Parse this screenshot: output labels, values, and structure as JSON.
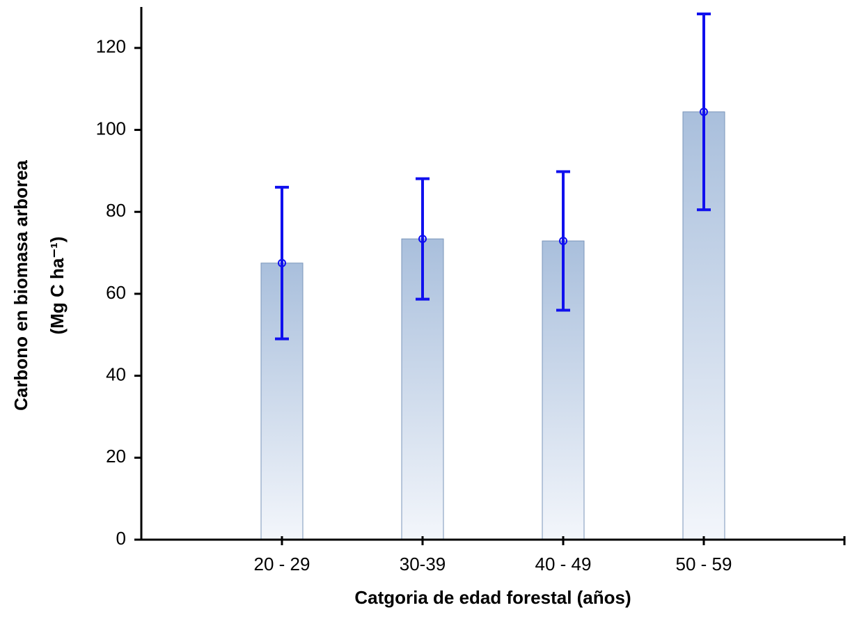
{
  "chart_data": {
    "type": "bar",
    "x_label": "Catgoria de edad forestal (años)",
    "y_label": [
      "Carbono en biomasa arborea",
      "(Mg C ha⁻¹)"
    ],
    "categories": [
      "20 - 29",
      "30-39",
      "40 - 49",
      "50 - 59"
    ],
    "values": [
      67.5,
      73.4,
      72.9,
      104.4
    ],
    "errors": [
      18.5,
      14.7,
      16.9,
      23.9
    ],
    "color": "#a9bfdc",
    "error_color": "#1010ee",
    "ylim": [
      0,
      130
    ],
    "yticks": [
      0,
      20,
      40,
      60,
      80,
      100,
      120
    ]
  }
}
